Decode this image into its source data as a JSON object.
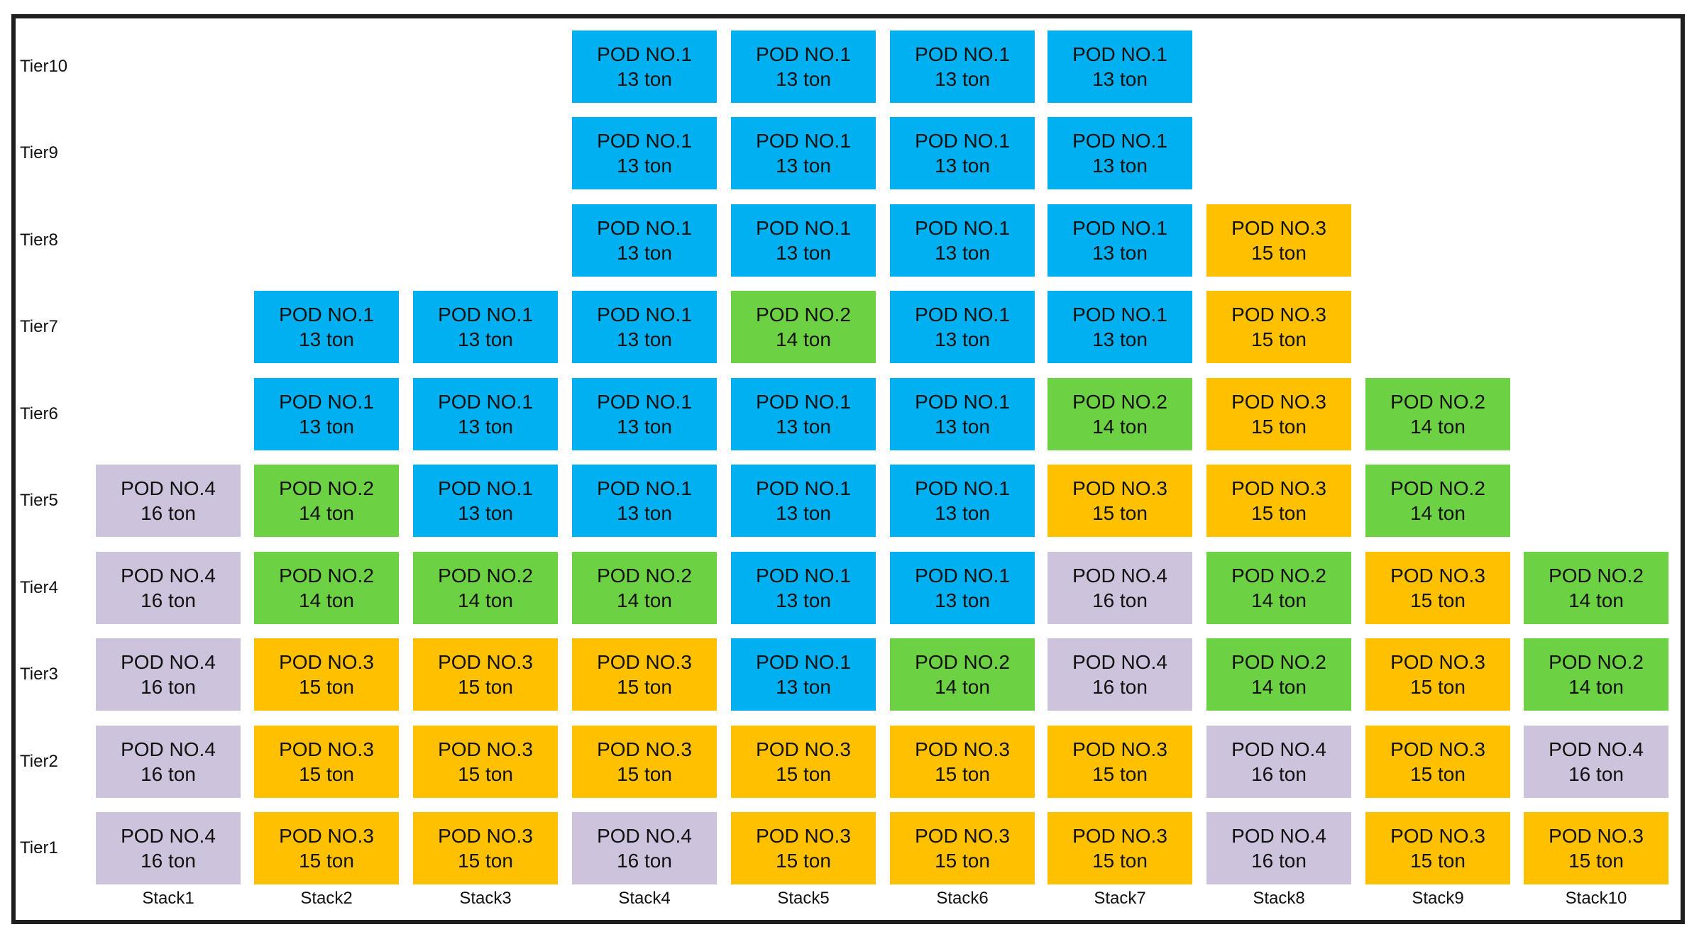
{
  "pods": {
    "1": {
      "name": "POD NO.1",
      "weight": "13 ton",
      "color": "#00B0F0"
    },
    "2": {
      "name": "POD NO.2",
      "weight": "14 ton",
      "color": "#6DD144"
    },
    "3": {
      "name": "POD NO.3",
      "weight": "15 ton",
      "color": "#FFC000"
    },
    "4": {
      "name": "POD NO.4",
      "weight": "16 ton",
      "color": "#CEC3DD"
    }
  },
  "tiers": [
    "Tier1",
    "Tier2",
    "Tier3",
    "Tier4",
    "Tier5",
    "Tier6",
    "Tier7",
    "Tier8",
    "Tier9",
    "Tier10"
  ],
  "stacks": [
    {
      "label": "Stack1",
      "pods": [
        4,
        4,
        4,
        4,
        4
      ]
    },
    {
      "label": "Stack2",
      "pods": [
        3,
        3,
        3,
        2,
        2,
        1,
        1
      ]
    },
    {
      "label": "Stack3",
      "pods": [
        3,
        3,
        3,
        2,
        1,
        1,
        1
      ]
    },
    {
      "label": "Stack4",
      "pods": [
        4,
        3,
        3,
        2,
        1,
        1,
        1,
        1,
        1,
        1
      ]
    },
    {
      "label": "Stack5",
      "pods": [
        3,
        3,
        1,
        1,
        1,
        1,
        2,
        1,
        1,
        1
      ]
    },
    {
      "label": "Stack6",
      "pods": [
        3,
        3,
        2,
        1,
        1,
        1,
        1,
        1,
        1,
        1
      ]
    },
    {
      "label": "Stack7",
      "pods": [
        3,
        3,
        4,
        4,
        3,
        2,
        1,
        1,
        1,
        1
      ]
    },
    {
      "label": "Stack8",
      "pods": [
        4,
        4,
        2,
        2,
        3,
        3,
        3,
        3
      ]
    },
    {
      "label": "Stack9",
      "pods": [
        3,
        3,
        3,
        3,
        2,
        2
      ]
    },
    {
      "label": "Stack10",
      "pods": [
        3,
        4,
        2,
        2
      ]
    }
  ]
}
